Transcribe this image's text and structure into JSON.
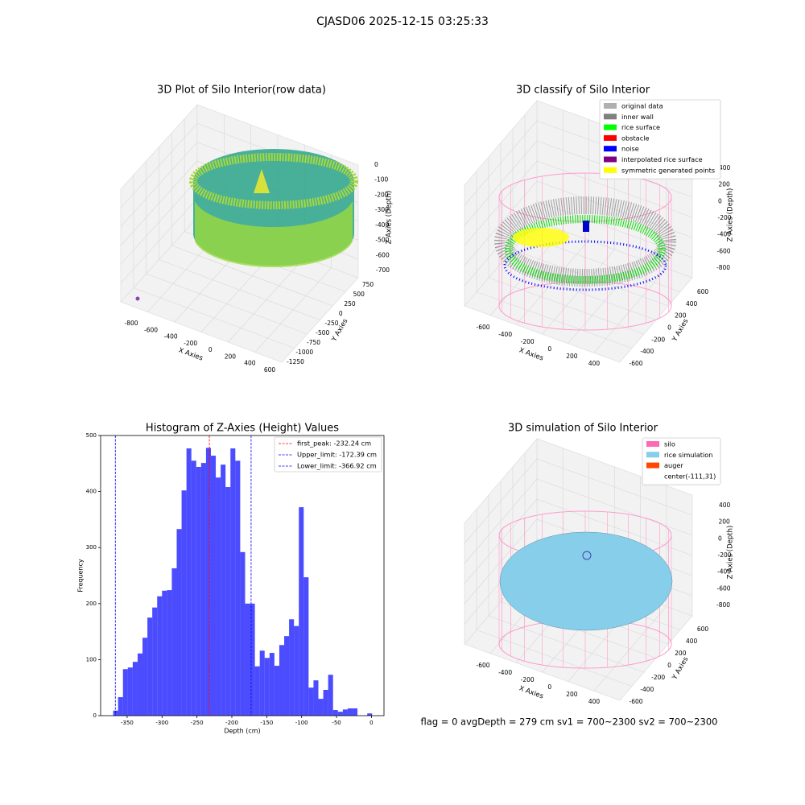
{
  "title": "CJASD06 2025-12-15 03:25:33",
  "footer": "flag = 0     avgDepth = 279 cm  sv1 = 700~2300  sv2 = 700~2300",
  "chart_data": [
    {
      "type": "scatter3d",
      "title": "3D Plot of Silo Interior(row data)",
      "xlabel": "X Axies",
      "ylabel": "Y Axies",
      "zlabel": "Z Axies (Depth)",
      "xticks": [
        -800,
        -600,
        -400,
        -200,
        0,
        200,
        400,
        600
      ],
      "yticks": [
        -1250,
        -1000,
        -750,
        -500,
        -250,
        0,
        250,
        500,
        750
      ],
      "zticks": [
        -700,
        -600,
        -500,
        -400,
        -300,
        -200,
        -100,
        0
      ]
    },
    {
      "type": "scatter3d",
      "title": "3D classify of Silo Interior",
      "xlabel": "X Axies",
      "ylabel": "Y Axies",
      "zlabel": "Z Axies (Depth)",
      "xticks": [
        -600,
        -400,
        -200,
        0,
        200,
        400
      ],
      "yticks": [
        -600,
        -400,
        -200,
        0,
        200,
        400,
        600
      ],
      "zticks": [
        -800,
        -600,
        -400,
        -200,
        0,
        200,
        400
      ],
      "legend": [
        {
          "name": "original data",
          "color": "#b0b0b0"
        },
        {
          "name": "inner wall",
          "color": "#808080"
        },
        {
          "name": "rice surface",
          "color": "#00ff00"
        },
        {
          "name": "obstacle",
          "color": "#ff0000"
        },
        {
          "name": "noise",
          "color": "#0000ff"
        },
        {
          "name": "interpolated rice surface",
          "color": "#800080"
        },
        {
          "name": "symmetric generated points",
          "color": "#ffff00"
        }
      ]
    },
    {
      "type": "histogram",
      "title": "Histogram of Z-Axies (Height) Values",
      "xlabel": "Depth (cm)",
      "ylabel": "Frequency",
      "color": "#0000ff",
      "alpha": 0.7,
      "bins": [
        -370,
        -363,
        -356,
        -349,
        -342,
        -335,
        -328,
        -321,
        -314,
        -307,
        -300,
        -293,
        -286,
        -279,
        -272,
        -265,
        -258,
        -251,
        -244,
        -237,
        -230,
        -223,
        -216,
        -209,
        -202,
        -195,
        -188,
        -181,
        -174,
        -167,
        -160,
        -153,
        -146,
        -139,
        -132,
        -125,
        -118,
        -111,
        -104,
        -97,
        -90,
        -83,
        -76,
        -69,
        -62,
        -55,
        -48,
        -41,
        -34,
        -27,
        -20,
        -13,
        -6,
        1
      ],
      "values": [
        9,
        33,
        83,
        86,
        96,
        111,
        139,
        175,
        193,
        213,
        223,
        224,
        263,
        333,
        402,
        477,
        455,
        444,
        451,
        478,
        464,
        425,
        448,
        408,
        477,
        455,
        292,
        200,
        200,
        88,
        116,
        103,
        112,
        89,
        126,
        142,
        172,
        160,
        372,
        247,
        50,
        63,
        30,
        46,
        73,
        10,
        7,
        11,
        13,
        13,
        0,
        0,
        4
      ],
      "xlim": [
        -388,
        18
      ],
      "ylim": [
        0,
        500
      ],
      "xticks": [
        -350,
        -300,
        -250,
        -200,
        -150,
        -100,
        -50,
        0
      ],
      "yticks": [
        0,
        100,
        200,
        300,
        400,
        500
      ],
      "vlines": [
        {
          "name": "first_peak: -232.24 cm",
          "value": -232.24,
          "color": "#ff0000"
        },
        {
          "name": "Upper_limit: -172.39 cm",
          "value": -172.39,
          "color": "#0000ff"
        },
        {
          "name": "Lower_limit: -366.92 cm",
          "value": -366.92,
          "color": "#0000ff"
        }
      ],
      "legend_loc": "upper right"
    },
    {
      "type": "surface3d",
      "title": "3D simulation of Silo Interior",
      "xlabel": "X Axies",
      "ylabel": "Y Axies",
      "zlabel": "Z Axies (Depth)",
      "xticks": [
        -600,
        -400,
        -200,
        0,
        200,
        400
      ],
      "yticks": [
        -600,
        -400,
        -200,
        0,
        200,
        400,
        600
      ],
      "zticks": [
        -800,
        -600,
        -400,
        -200,
        0,
        200,
        400
      ],
      "legend": [
        {
          "name": "silo",
          "color": "#ff69b4"
        },
        {
          "name": "rice simulation",
          "color": "#87ceeb"
        },
        {
          "name": "auger",
          "color": "#ff4500"
        },
        {
          "name": "center(-111,31)"
        }
      ]
    }
  ]
}
